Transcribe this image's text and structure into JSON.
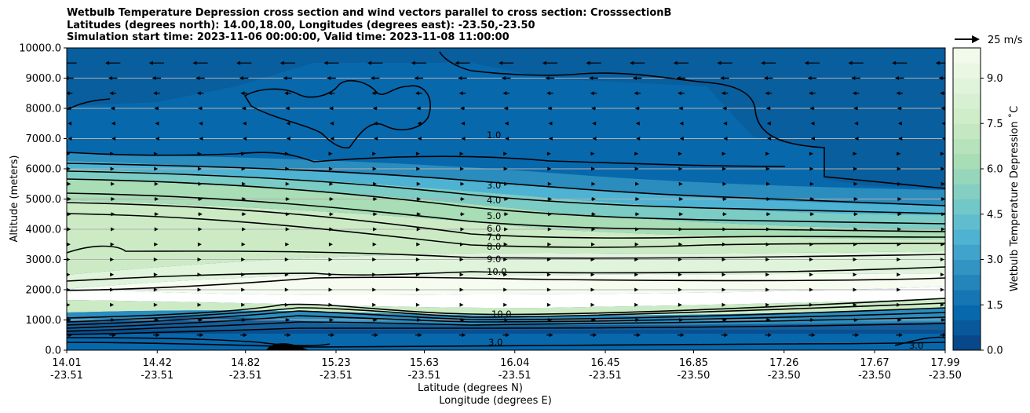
{
  "chart_data": {
    "type": "heatmap",
    "title_lines": [
      "Wetbulb Temperature Depression cross section and wind vectors parallel to cross section: CrosssectionB",
      "Latitudes (degrees north): 14.00,18.00, Longitudes (degrees east): -23.50,-23.50",
      "Simulation start time: 2023-11-06 00:00:00, Valid time: 2023-11-08 11:00:00"
    ],
    "ylabel": "Altitude (meters)",
    "xlabel_lat": "Latitude (degrees N)",
    "xlabel_lon": "Longitude (degrees E)",
    "ylim": [
      0,
      10000
    ],
    "yticks": [
      "0.0",
      "1000.0",
      "2000.0",
      "3000.0",
      "4000.0",
      "5000.0",
      "6000.0",
      "7000.0",
      "8000.0",
      "9000.0",
      "10000.0"
    ],
    "xlim": [
      14.01,
      17.99
    ],
    "xticks": [
      {
        "lat": "14.01",
        "lon": "-23.51"
      },
      {
        "lat": "14.42",
        "lon": "-23.51"
      },
      {
        "lat": "14.82",
        "lon": "-23.51"
      },
      {
        "lat": "15.23",
        "lon": "-23.51"
      },
      {
        "lat": "15.63",
        "lon": "-23.51"
      },
      {
        "lat": "16.04",
        "lon": "-23.51"
      },
      {
        "lat": "16.45",
        "lon": "-23.51"
      },
      {
        "lat": "16.85",
        "lon": "-23.50"
      },
      {
        "lat": "17.26",
        "lon": "-23.50"
      },
      {
        "lat": "17.67",
        "lon": "-23.50"
      },
      {
        "lat": "17.99",
        "lon": "-23.50"
      }
    ],
    "grid": "horizontal",
    "colorbar": {
      "label": "Wetbulb Temperature Depression $^\\circ$C",
      "display_label": "Wetbulb Temperature Depression ˚C",
      "min": 0,
      "max": 10,
      "step": 0.5,
      "ticks": [
        "0.0",
        "1.5",
        "3.0",
        "4.5",
        "6.0",
        "7.5",
        "9.0"
      ],
      "colormap": "GnBu_r"
    },
    "contour_levels": [
      {
        "level": 1.0,
        "labels": [
          "1.0"
        ]
      },
      {
        "level": 3.0,
        "labels": [
          "3.0"
        ]
      },
      {
        "level": 4.0,
        "labels": [
          "4.0"
        ]
      },
      {
        "level": 5.0,
        "labels": [
          "5.0"
        ]
      },
      {
        "level": 6.0,
        "labels": [
          "6.0"
        ]
      },
      {
        "level": 7.0,
        "labels": [
          "7.0"
        ]
      },
      {
        "level": 8.0,
        "labels": [
          "8.0"
        ]
      },
      {
        "level": 9.0,
        "labels": [
          "9.0"
        ]
      },
      {
        "level": 10.0,
        "labels": [
          "10.0"
        ]
      }
    ],
    "wind_key": {
      "label": "25 m/s",
      "value": 25
    },
    "wind_rows": [
      {
        "alt": 9500,
        "dir": -1,
        "speed": 20
      },
      {
        "alt": 9000,
        "dir": -1,
        "speed": 12
      },
      {
        "alt": 8500,
        "dir": -1,
        "speed": 9
      },
      {
        "alt": 8000,
        "dir": -1,
        "speed": 6
      },
      {
        "alt": 7500,
        "dir": -1,
        "speed": 4
      },
      {
        "alt": 7000,
        "dir": -1,
        "speed": 3
      },
      {
        "alt": 6500,
        "dir": 1,
        "speed": 3
      },
      {
        "alt": 6000,
        "dir": 1,
        "speed": 4
      },
      {
        "alt": 5500,
        "dir": 1,
        "speed": 5
      },
      {
        "alt": 5000,
        "dir": 1,
        "speed": 6
      },
      {
        "alt": 4500,
        "dir": 1,
        "speed": 6
      },
      {
        "alt": 4000,
        "dir": 1,
        "speed": 5
      },
      {
        "alt": 3500,
        "dir": 1,
        "speed": 4
      },
      {
        "alt": 3000,
        "dir": 1,
        "speed": 3
      },
      {
        "alt": 2500,
        "dir": 1,
        "speed": 3
      },
      {
        "alt": 2000,
        "dir": 1,
        "speed": 2
      },
      {
        "alt": 1500,
        "dir": 1,
        "speed": 2
      },
      {
        "alt": 1000,
        "dir": 1,
        "speed": 6
      },
      {
        "alt": 500,
        "dir": 1,
        "speed": 9
      }
    ]
  }
}
